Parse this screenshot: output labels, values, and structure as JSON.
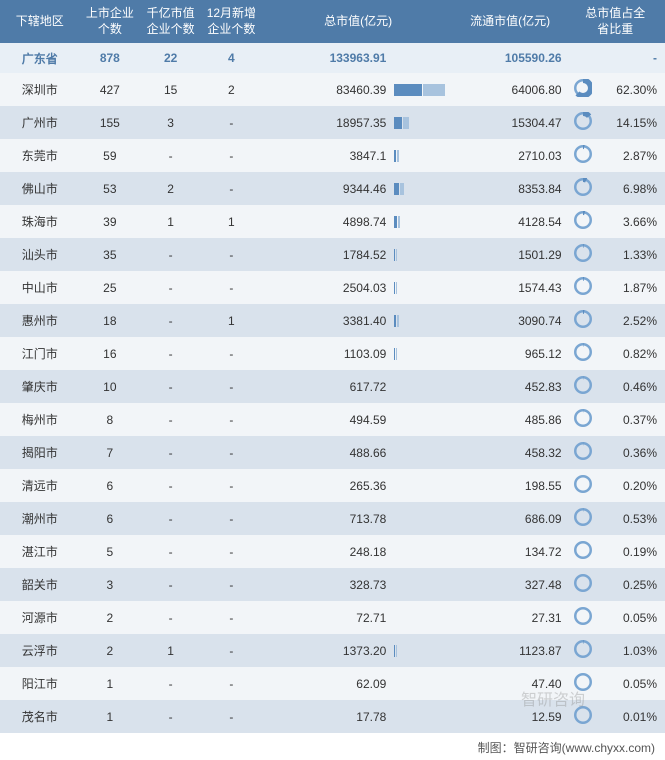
{
  "table": {
    "headers": {
      "region": "下辖地区",
      "listed_count": "上市企业\n个数",
      "thousand_val_count": "千亿市值\n企业个数",
      "dec_new_count": "12月新增\n企业个数",
      "total_mktval": "总市值(亿元)",
      "circ_mktval": "流通市值(亿元)",
      "pct_province": "总市值占全\n省比重"
    },
    "summary": {
      "region": "广东省",
      "listed": "878",
      "thousand": "22",
      "newadd": "4",
      "total": "133963.91",
      "circ": "105590.26",
      "pct": "-"
    },
    "rows": [
      {
        "region": "深圳市",
        "listed": "427",
        "thousand": "15",
        "newadd": "2",
        "total": "83460.39",
        "circ": "64006.80",
        "pct": "62.30%",
        "barA": 28,
        "barB": 22,
        "pie": 62.3
      },
      {
        "region": "广州市",
        "listed": "155",
        "thousand": "3",
        "newadd": "-",
        "total": "18957.35",
        "circ": "15304.47",
        "pct": "14.15%",
        "barA": 8,
        "barB": 6,
        "pie": 14.15
      },
      {
        "region": "东莞市",
        "listed": "59",
        "thousand": "-",
        "newadd": "-",
        "total": "3847.1",
        "circ": "2710.03",
        "pct": "2.87%",
        "barA": 2,
        "barB": 2,
        "pie": 2.87
      },
      {
        "region": "佛山市",
        "listed": "53",
        "thousand": "2",
        "newadd": "-",
        "total": "9344.46",
        "circ": "8353.84",
        "pct": "6.98%",
        "barA": 5,
        "barB": 4,
        "pie": 6.98
      },
      {
        "region": "珠海市",
        "listed": "39",
        "thousand": "1",
        "newadd": "1",
        "total": "4898.74",
        "circ": "4128.54",
        "pct": "3.66%",
        "barA": 3,
        "barB": 2,
        "pie": 3.66
      },
      {
        "region": "汕头市",
        "listed": "35",
        "thousand": "-",
        "newadd": "-",
        "total": "1784.52",
        "circ": "1501.29",
        "pct": "1.33%",
        "barA": 1,
        "barB": 1,
        "pie": 1.33
      },
      {
        "region": "中山市",
        "listed": "25",
        "thousand": "-",
        "newadd": "-",
        "total": "2504.03",
        "circ": "1574.43",
        "pct": "1.87%",
        "barA": 1,
        "barB": 1,
        "pie": 1.87
      },
      {
        "region": "惠州市",
        "listed": "18",
        "thousand": "-",
        "newadd": "1",
        "total": "3381.40",
        "circ": "3090.74",
        "pct": "2.52%",
        "barA": 2,
        "barB": 2,
        "pie": 2.52
      },
      {
        "region": "江门市",
        "listed": "16",
        "thousand": "-",
        "newadd": "-",
        "total": "1103.09",
        "circ": "965.12",
        "pct": "0.82%",
        "barA": 1,
        "barB": 1,
        "pie": 0.82
      },
      {
        "region": "肇庆市",
        "listed": "10",
        "thousand": "-",
        "newadd": "-",
        "total": "617.72",
        "circ": "452.83",
        "pct": "0.46%",
        "barA": 0,
        "barB": 0,
        "pie": 0.46
      },
      {
        "region": "梅州市",
        "listed": "8",
        "thousand": "-",
        "newadd": "-",
        "total": "494.59",
        "circ": "485.86",
        "pct": "0.37%",
        "barA": 0,
        "barB": 0,
        "pie": 0.37
      },
      {
        "region": "揭阳市",
        "listed": "7",
        "thousand": "-",
        "newadd": "-",
        "total": "488.66",
        "circ": "458.32",
        "pct": "0.36%",
        "barA": 0,
        "barB": 0,
        "pie": 0.36
      },
      {
        "region": "清远市",
        "listed": "6",
        "thousand": "-",
        "newadd": "-",
        "total": "265.36",
        "circ": "198.55",
        "pct": "0.20%",
        "barA": 0,
        "barB": 0,
        "pie": 0.2
      },
      {
        "region": "潮州市",
        "listed": "6",
        "thousand": "-",
        "newadd": "-",
        "total": "713.78",
        "circ": "686.09",
        "pct": "0.53%",
        "barA": 0,
        "barB": 0,
        "pie": 0.53
      },
      {
        "region": "湛江市",
        "listed": "5",
        "thousand": "-",
        "newadd": "-",
        "total": "248.18",
        "circ": "134.72",
        "pct": "0.19%",
        "barA": 0,
        "barB": 0,
        "pie": 0.19
      },
      {
        "region": "韶关市",
        "listed": "3",
        "thousand": "-",
        "newadd": "-",
        "total": "328.73",
        "circ": "327.48",
        "pct": "0.25%",
        "barA": 0,
        "barB": 0,
        "pie": 0.25
      },
      {
        "region": "河源市",
        "listed": "2",
        "thousand": "-",
        "newadd": "-",
        "total": "72.71",
        "circ": "27.31",
        "pct": "0.05%",
        "barA": 0,
        "barB": 0,
        "pie": 0.05
      },
      {
        "region": "云浮市",
        "listed": "2",
        "thousand": "1",
        "newadd": "-",
        "total": "1373.20",
        "circ": "1123.87",
        "pct": "1.03%",
        "barA": 1,
        "barB": 1,
        "pie": 1.03
      },
      {
        "region": "阳江市",
        "listed": "1",
        "thousand": "-",
        "newadd": "-",
        "total": "62.09",
        "circ": "47.40",
        "pct": "0.05%",
        "barA": 0,
        "barB": 0,
        "pie": 0.05
      },
      {
        "region": "茂名市",
        "listed": "1",
        "thousand": "-",
        "newadd": "-",
        "total": "17.78",
        "circ": "12.59",
        "pct": "0.01%",
        "barA": 0,
        "barB": 0,
        "pie": 0.01
      }
    ]
  },
  "colors": {
    "header_bg": "#4f7ba8",
    "header_fg": "#ffffff",
    "summary_bg": "#e8eff6",
    "summary_fg": "#4f7ba8",
    "row_odd_bg": "#f2f5f8",
    "row_even_bg": "#d9e2ec",
    "bar_dark": "#5b8cbf",
    "bar_light": "#a8c3de",
    "ring_border": "#7aa6d2",
    "ring_fill": "#5b8cbf"
  },
  "watermark": "智研咨询",
  "footer": "制图：智研咨询(www.chyxx.com)"
}
